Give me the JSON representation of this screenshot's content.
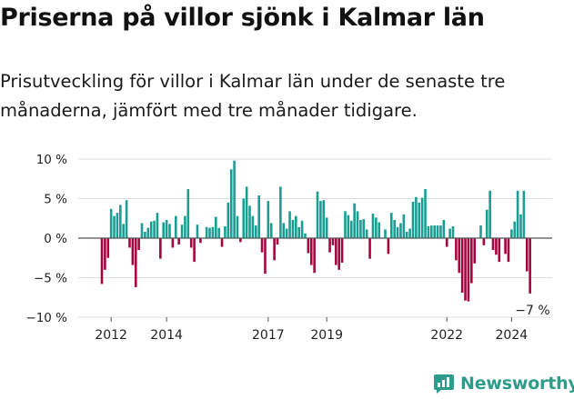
{
  "title": "Priserna på villor sjönk i Kalmar län",
  "subtitle": "Prisutveckling för villor i Kalmar län under de senaste tre månaderna, jämfört med tre månader tidigare.",
  "brand": {
    "name": "Newsworthy",
    "icon": "newsworthy-logo-icon",
    "color": "#2e9c8b"
  },
  "colors": {
    "positive": "#1a9e93",
    "negative": "#a3063f",
    "grid": "#dddddd",
    "zero": "#555555"
  },
  "chart_data": {
    "type": "bar",
    "title": "Priserna på villor sjönk i Kalmar län",
    "ylabel": "",
    "xlabel": "",
    "ylim": [
      -10,
      10
    ],
    "y_ticks": [
      10,
      5,
      0,
      -5,
      -10
    ],
    "y_tick_labels": [
      "10 %",
      "5 %",
      "0 %",
      "−5 %",
      "−10 %"
    ],
    "x_ticks": [
      {
        "label": "2012",
        "index": 3
      },
      {
        "label": "2014",
        "index": 21
      },
      {
        "label": "2017",
        "index": 54
      },
      {
        "label": "2019",
        "index": 73
      },
      {
        "label": "2022",
        "index": 112
      },
      {
        "label": "2024",
        "index": 133
      }
    ],
    "last_value_label": "−7 %",
    "values": [
      -5.8,
      -4,
      -2.5,
      3.7,
      2.8,
      3.2,
      4.2,
      1.8,
      4.8,
      -1.2,
      -3.4,
      -6.2,
      -1.5,
      1.9,
      0.8,
      1.3,
      2.1,
      2.2,
      3.2,
      -2.6,
      2,
      2.3,
      1.8,
      -1.2,
      2.8,
      -0.8,
      1.7,
      2.8,
      6.2,
      -1.2,
      -3,
      1.7,
      -0.6,
      0,
      1.4,
      1.3,
      1.4,
      2.7,
      1.3,
      -1.1,
      1.5,
      4.5,
      8.7,
      9.8,
      2.8,
      -0.5,
      5,
      6.5,
      4.1,
      2.8,
      1.6,
      5.4,
      -1.8,
      -4.5,
      4.7,
      1.9,
      -2.8,
      -0.8,
      6.5,
      1.9,
      1.2,
      3.4,
      2.3,
      2.8,
      1.4,
      2.2,
      0.6,
      -1.9,
      -3.4,
      -4.4,
      5.9,
      4.7,
      4.8,
      2.6,
      -1.8,
      -0.9,
      -3.4,
      -4,
      -3.1,
      3.4,
      2.9,
      2.2,
      4.4,
      3.4,
      2.3,
      2.4,
      1.1,
      -2.6,
      3.1,
      2.6,
      2,
      0,
      1.1,
      -2,
      3.2,
      2.3,
      1.4,
      1.9,
      3,
      0.8,
      1.2,
      4.6,
      5.2,
      4.5,
      5.1,
      6.2,
      1.5,
      1.6,
      1.6,
      1.6,
      1.6,
      2.3,
      -1.1,
      1.2,
      1.5,
      -2.8,
      -4.4,
      -6.9,
      -7.9,
      -8,
      -5.7,
      -3.2,
      0,
      1.6,
      -0.9,
      3.6,
      6,
      -1.5,
      -2.1,
      -3,
      0,
      -2,
      -3,
      1.1,
      2.1,
      6,
      3,
      6,
      -4.2,
      -7
    ]
  }
}
